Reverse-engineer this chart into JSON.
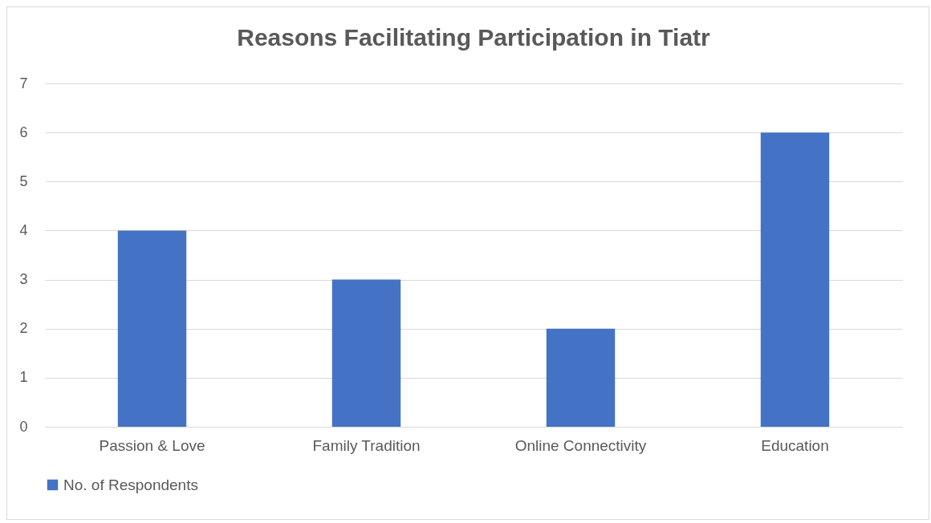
{
  "chart_data": {
    "type": "bar",
    "title": "Reasons Facilitating Participation in Tiatr",
    "categories": [
      "Passion & Love",
      "Family Tradition",
      "Online Connectivity",
      "Education"
    ],
    "series": [
      {
        "name": "No. of Respondents",
        "color": "#4472c4",
        "values": [
          4,
          3,
          2,
          6
        ]
      }
    ],
    "ylim": [
      0,
      7
    ],
    "yticks": [
      0,
      1,
      2,
      3,
      4,
      5,
      6,
      7
    ],
    "grid": "y",
    "legend": "bottom"
  }
}
